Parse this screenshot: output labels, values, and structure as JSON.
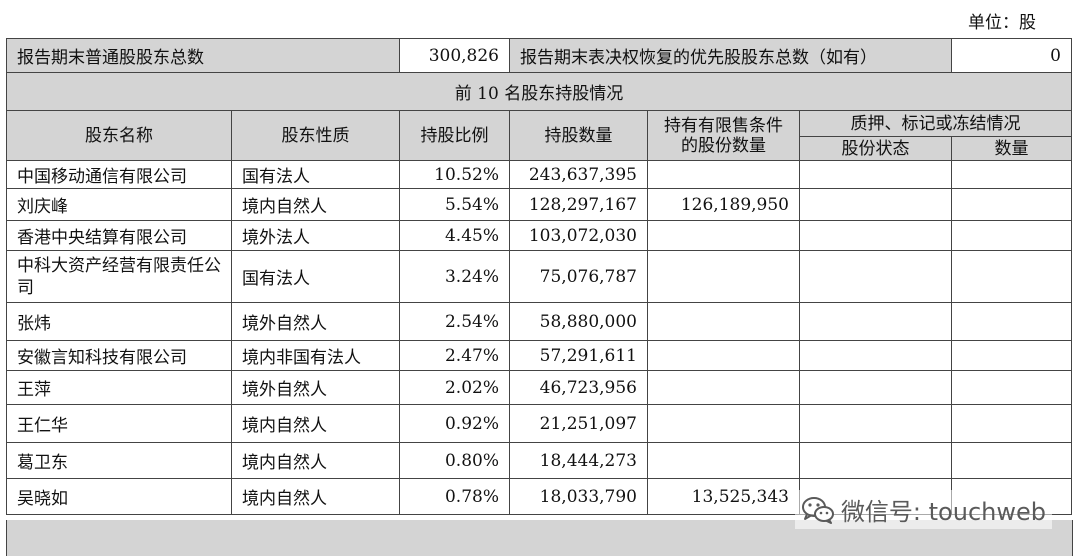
{
  "unit_label": "单位：股",
  "summary": {
    "common_label": "报告期末普通股股东总数",
    "common_value": "300,826",
    "preferred_label": "报告期末表决权恢复的优先股股东总数（如有）",
    "preferred_value": "0"
  },
  "section_title": "前 10 名股东持股情况",
  "headers": {
    "name": "股东名称",
    "nature": "股东性质",
    "ratio": "持股比例",
    "quantity": "持股数量",
    "restricted": "持有有限售条件的股份数量",
    "pledge_group": "质押、标记或冻结情况",
    "pledge_status": "股份状态",
    "pledge_quantity": "数量"
  },
  "rows": [
    {
      "name": "中国移动通信有限公司",
      "nature": "国有法人",
      "ratio": "10.52%",
      "quantity": "243,637,395",
      "restricted": "",
      "status": "",
      "pledged": ""
    },
    {
      "name": "刘庆峰",
      "nature": "境内自然人",
      "ratio": "5.54%",
      "quantity": "128,297,167",
      "restricted": "126,189,950",
      "status": "",
      "pledged": ""
    },
    {
      "name": "香港中央结算有限公司",
      "nature": "境外法人",
      "ratio": "4.45%",
      "quantity": "103,072,030",
      "restricted": "",
      "status": "",
      "pledged": ""
    },
    {
      "name": "中科大资产经营有限责任公司",
      "nature": "国有法人",
      "ratio": "3.24%",
      "quantity": "75,076,787",
      "restricted": "",
      "status": "",
      "pledged": ""
    },
    {
      "name": "张炜",
      "nature": "境外自然人",
      "ratio": "2.54%",
      "quantity": "58,880,000",
      "restricted": "",
      "status": "",
      "pledged": ""
    },
    {
      "name": "安徽言知科技有限公司",
      "nature": "境内非国有法人",
      "ratio": "2.47%",
      "quantity": "57,291,611",
      "restricted": "",
      "status": "",
      "pledged": ""
    },
    {
      "name": "王萍",
      "nature": "境外自然人",
      "ratio": "2.02%",
      "quantity": "46,723,956",
      "restricted": "",
      "status": "",
      "pledged": ""
    },
    {
      "name": "王仁华",
      "nature": "境内自然人",
      "ratio": "0.92%",
      "quantity": "21,251,097",
      "restricted": "",
      "status": "",
      "pledged": ""
    },
    {
      "name": "葛卫东",
      "nature": "境内自然人",
      "ratio": "0.80%",
      "quantity": "18,444,273",
      "restricted": "",
      "status": "",
      "pledged": ""
    },
    {
      "name": "吴晓如",
      "nature": "境内自然人",
      "ratio": "0.78%",
      "quantity": "18,033,790",
      "restricted": "13,525,343",
      "status": "",
      "pledged": ""
    }
  ],
  "watermark": {
    "text": "微信号: touchweb",
    "icon": "wechat-icon"
  }
}
